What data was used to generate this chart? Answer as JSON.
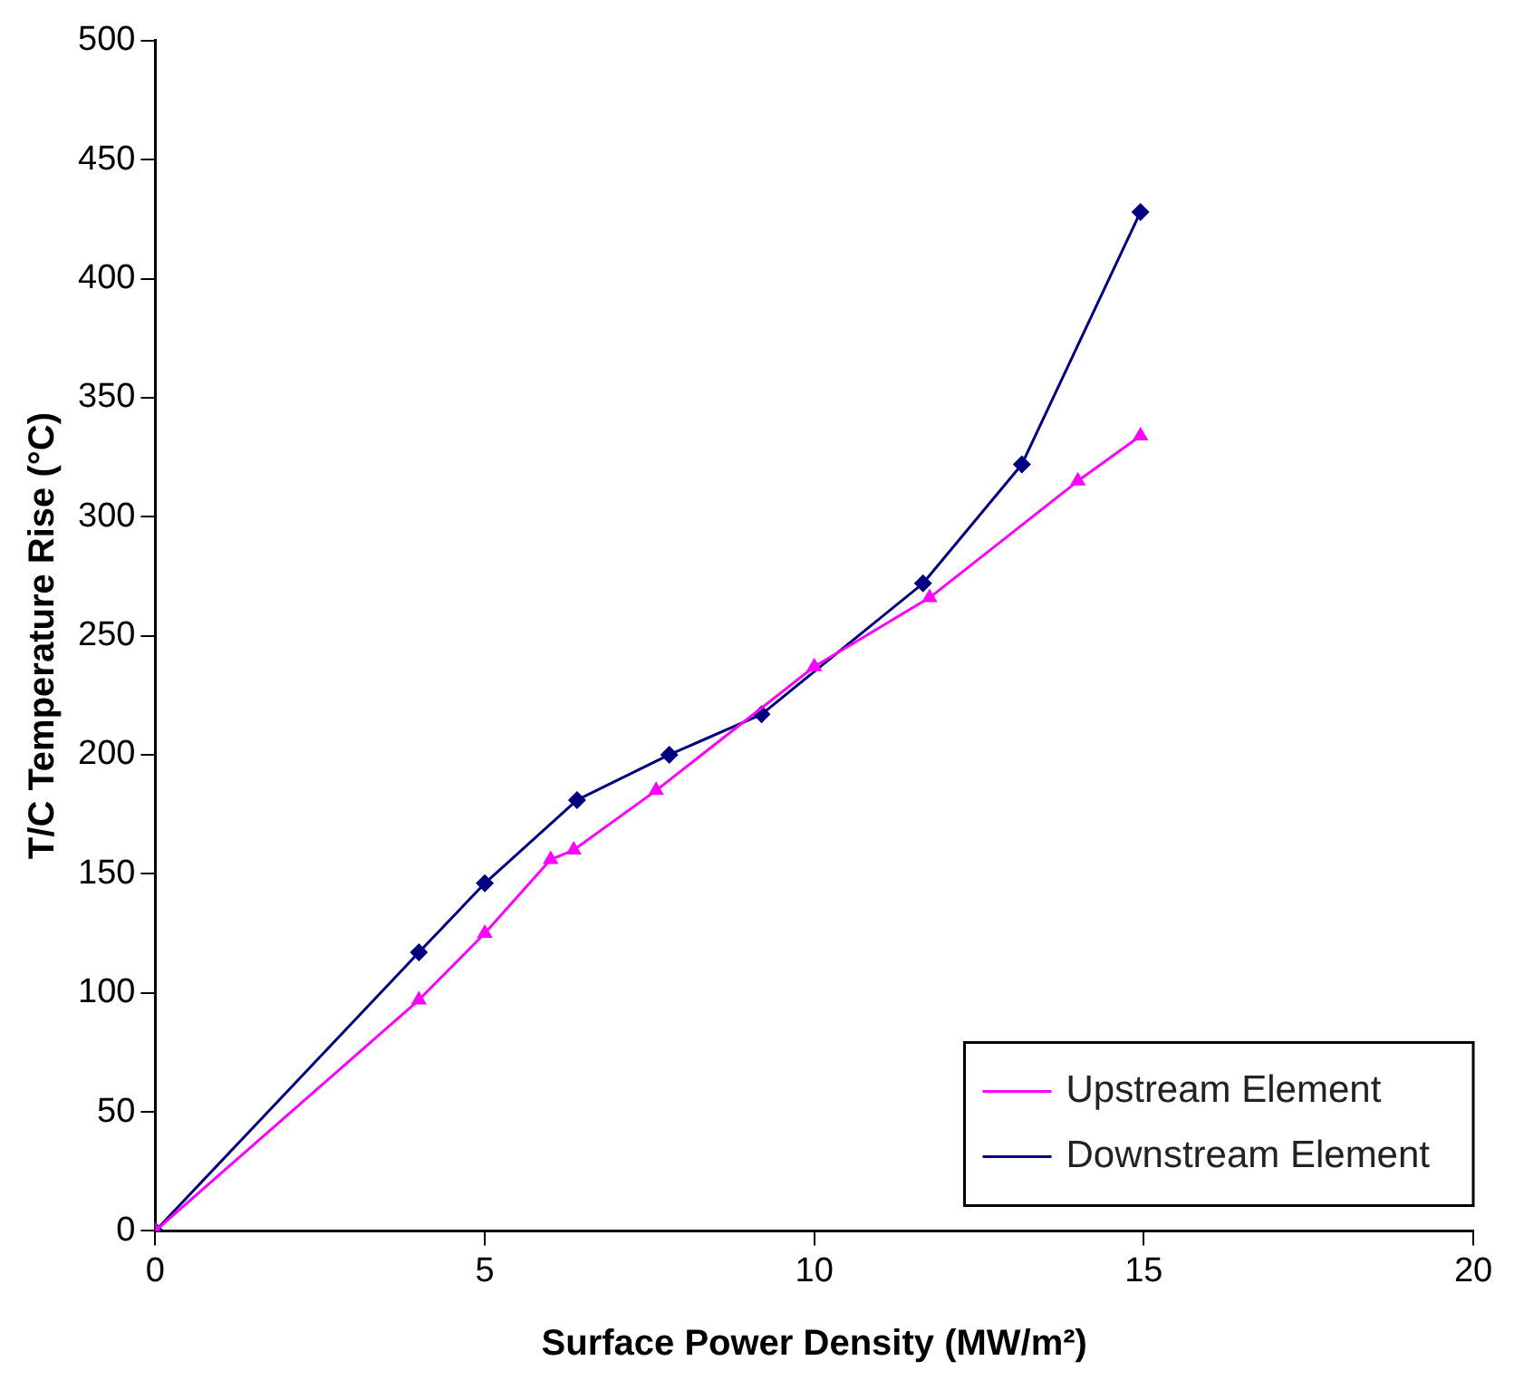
{
  "chart_data": {
    "type": "line",
    "xlabel": "Surface Power Density (MW/m²)",
    "ylabel": "T/C Temperature Rise (°C)",
    "xlim": [
      0,
      20
    ],
    "xticks": [
      0,
      5,
      10,
      15,
      20
    ],
    "ylim": [
      0,
      500
    ],
    "yticks": [
      0,
      50,
      100,
      150,
      200,
      250,
      300,
      350,
      400,
      450,
      500
    ],
    "grid": false,
    "legend": "bottom right",
    "series": [
      {
        "name": "Upstream Element",
        "color": "#ff00ff",
        "marker": "triangle",
        "x": [
          0,
          4.0,
          5.0,
          6.0,
          6.35,
          7.6,
          10.0,
          11.75,
          14.0,
          14.95
        ],
        "values": [
          0,
          97,
          125,
          156,
          160,
          185,
          237,
          266,
          315,
          334
        ]
      },
      {
        "name": "Downstream Element",
        "color": "#000080",
        "marker": "diamond",
        "x": [
          0,
          4.0,
          5.0,
          6.4,
          7.8,
          9.2,
          11.65,
          13.15,
          14.95
        ],
        "values": [
          0,
          117,
          146,
          181,
          200,
          217,
          272,
          322,
          428
        ]
      }
    ]
  }
}
